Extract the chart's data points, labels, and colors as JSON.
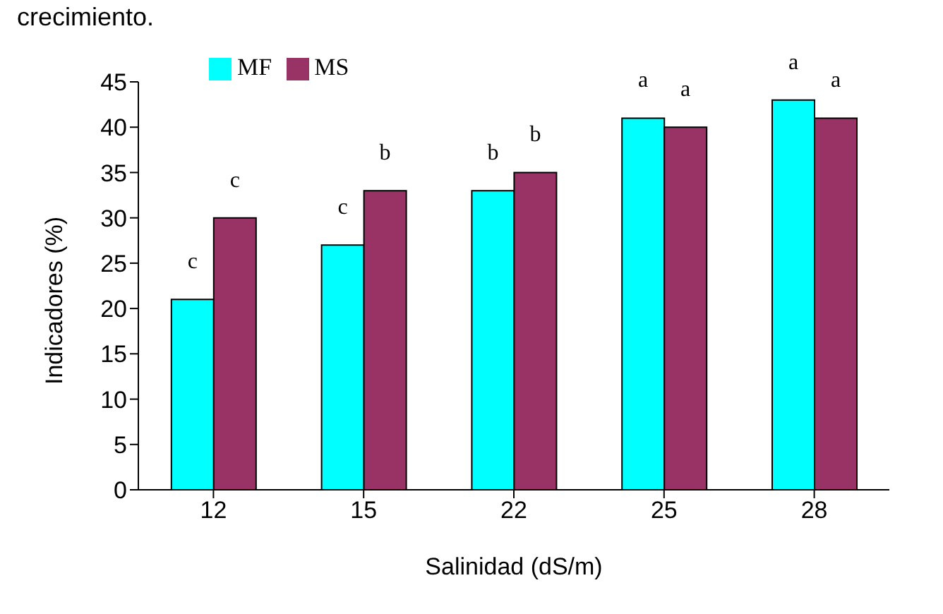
{
  "chart_data": {
    "type": "bar",
    "title": "crecimiento.",
    "xlabel": "Salinidad (dS/m)",
    "ylabel": "Indicadores  (%)",
    "categories": [
      "12",
      "15",
      "22",
      "25",
      "28"
    ],
    "series": [
      {
        "name": "MF",
        "color": "#00ffff",
        "values": [
          21,
          27,
          33,
          41,
          43
        ],
        "value_labels": [
          "c",
          "c",
          "b",
          "a",
          "a"
        ]
      },
      {
        "name": "MS",
        "color": "#993366",
        "values": [
          30,
          33,
          35,
          40,
          41
        ],
        "value_labels": [
          "c",
          "b",
          "b",
          "a",
          "a"
        ]
      }
    ],
    "ylim": [
      0,
      45
    ],
    "yticks": [
      0,
      5,
      10,
      15,
      20,
      25,
      30,
      35,
      40,
      45
    ],
    "grid": false,
    "legend": "top left"
  }
}
